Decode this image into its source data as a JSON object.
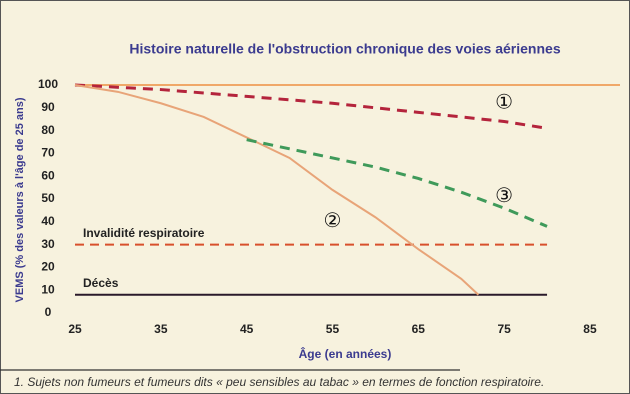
{
  "chart_data": {
    "type": "line",
    "title": "Histoire naturelle de l'obstruction chronique des voies aériennes",
    "y_label": "VEMS (% des valeurs à l'âge de 25 ans)",
    "x_label": "Âge (en années)",
    "xlim": [
      25,
      88.5
    ],
    "xticks": [
      25,
      35,
      45,
      55,
      65,
      75,
      85
    ],
    "ylim": [
      0,
      100
    ],
    "yticks": [
      0,
      10,
      20,
      30,
      40,
      50,
      60,
      70,
      80,
      90,
      100
    ],
    "series": [
      {
        "name": "①",
        "color": "#b4243c",
        "dash": true,
        "label_at": [
          75,
          92
        ],
        "x": [
          25,
          35,
          45,
          55,
          65,
          75,
          80
        ],
        "values": [
          100,
          98,
          95,
          92,
          88,
          84,
          81
        ]
      },
      {
        "name": "②",
        "color": "#e8a478",
        "dash": false,
        "label_at": [
          55,
          40
        ],
        "x": [
          25,
          30,
          35,
          40,
          45,
          50,
          55,
          60,
          65,
          70,
          72
        ],
        "values": [
          100,
          97,
          92,
          86,
          77,
          68,
          54,
          42,
          28,
          15,
          8
        ]
      },
      {
        "name": "③",
        "color": "#3f9a5a",
        "dash": true,
        "label_at": [
          75,
          51
        ],
        "x": [
          45,
          50,
          55,
          60,
          65,
          70,
          75,
          80
        ],
        "values": [
          76,
          72,
          68,
          64,
          59,
          53,
          46,
          38
        ]
      }
    ],
    "reference_lines": [
      {
        "value": 100,
        "color": "#f0a868",
        "dash": false,
        "x": [
          25,
          88.5
        ]
      },
      {
        "label": "Invalidité respiratoire",
        "value": 30,
        "color": "#d8502c",
        "dash": true,
        "x": [
          25,
          80
        ]
      },
      {
        "label": "Décès",
        "value": 8,
        "color": "#2a1a2a",
        "dash": false,
        "x": [
          25,
          80
        ]
      }
    ],
    "footnote": "1. Sujets non fumeurs et fumeurs dits « peu sensibles au tabac » en termes de fonction respiratoire."
  }
}
